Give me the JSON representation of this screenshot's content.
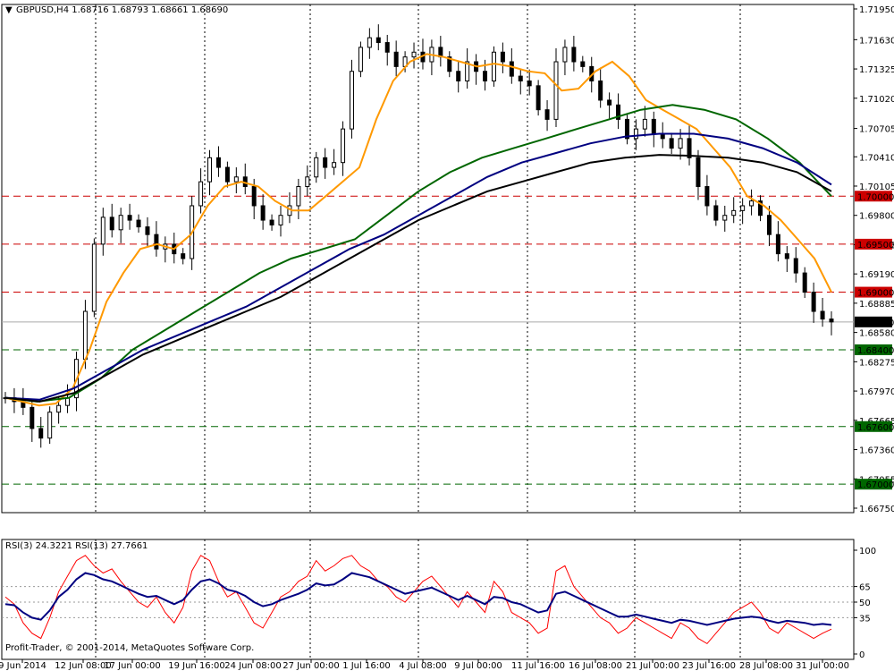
{
  "header": {
    "symbol": "GBPUSD,H4",
    "ohlc": "1.68716 1.68793 1.68661 1.68690"
  },
  "rsi_header": {
    "rsi3": "RSI(3) 24.3221",
    "rsi13": "RSI(13) 27.7661"
  },
  "copyright": "Profit-Trader, © 2001-2014, MetaQuotes Software Corp.",
  "colors": {
    "background": "#ffffff",
    "candle": "#000000",
    "ma_fast": "#ff9900",
    "ma_mid": "#006600",
    "ma_slow_blue": "#000080",
    "ma_slow_black": "#000000",
    "resistance": "#cc0000",
    "support": "#006600",
    "rsi_fast": "#ff0000",
    "rsi_slow": "#000080"
  },
  "chart_data": [
    {
      "type": "candlestick",
      "title": "GBPUSD,H4",
      "ylim": [
        1.6675,
        1.7195
      ],
      "y_ticks": [
        "1.71950",
        "1.71630",
        "1.71325",
        "1.71020",
        "1.70705",
        "1.70410",
        "1.70105",
        "1.69800",
        "1.69495",
        "1.69190",
        "1.68885",
        "1.68580",
        "1.68275",
        "1.67970",
        "1.67665",
        "1.67360",
        "1.67055",
        "1.66750"
      ],
      "x_ticks": [
        "9 Jun 2014",
        "12 Jun 08:00",
        "17 Jun 00:00",
        "19 Jun 16:00",
        "24 Jun 08:00",
        "27 Jun 00:00",
        "1 Jul 16:00",
        "4 Jul 08:00",
        "9 Jul 00:00",
        "11 Jul 16:00",
        "16 Jul 08:00",
        "21 Jul 00:00",
        "23 Jul 16:00",
        "28 Jul 08:00",
        "31 Jul 00:00"
      ],
      "close_series": [
        1.679,
        1.6786,
        1.678,
        1.6758,
        1.6748,
        1.6775,
        1.6782,
        1.679,
        1.683,
        1.688,
        1.695,
        1.6978,
        1.6965,
        1.698,
        1.6975,
        1.6968,
        1.696,
        1.6945,
        1.695,
        1.694,
        1.6935,
        1.699,
        1.7015,
        1.704,
        1.703,
        1.7015,
        1.702,
        1.701,
        1.699,
        1.6975,
        1.697,
        1.698,
        1.699,
        1.701,
        1.702,
        1.704,
        1.703,
        1.7035,
        1.707,
        1.713,
        1.7155,
        1.7165,
        1.716,
        1.715,
        1.7135,
        1.7145,
        1.715,
        1.714,
        1.7155,
        1.7145,
        1.713,
        1.712,
        1.714,
        1.713,
        1.712,
        1.715,
        1.714,
        1.7125,
        1.712,
        1.7115,
        1.709,
        1.708,
        1.714,
        1.7155,
        1.714,
        1.7135,
        1.712,
        1.71,
        1.7095,
        1.708,
        1.706,
        1.707,
        1.708,
        1.7065,
        1.706,
        1.705,
        1.706,
        1.704,
        1.701,
        1.699,
        1.6975,
        1.698,
        1.6985,
        1.699,
        1.6995,
        1.698,
        1.696,
        1.694,
        1.6935,
        1.692,
        1.69,
        1.688,
        1.6872,
        1.6869
      ],
      "moving_averages": [
        {
          "color": "orange",
          "values": [
            1.679,
            1.6786,
            1.6782,
            1.6784,
            1.68,
            1.684,
            1.689,
            1.692,
            1.6945,
            1.695,
            1.6945,
            1.696,
            1.699,
            1.701,
            1.7015,
            1.701,
            1.6995,
            1.6985,
            1.6985,
            1.7,
            1.7015,
            1.703,
            1.708,
            1.712,
            1.714,
            1.7148,
            1.7145,
            1.714,
            1.7135,
            1.7138,
            1.7135,
            1.713,
            1.7128,
            1.711,
            1.7112,
            1.713,
            1.714,
            1.7125,
            1.71,
            1.709,
            1.708,
            1.707,
            1.705,
            1.703,
            1.7,
            1.699,
            1.6975,
            1.6955,
            1.6935,
            1.69
          ]
        },
        {
          "color": "green",
          "values": [
            1.679,
            1.6786,
            1.679,
            1.681,
            1.684,
            1.686,
            1.688,
            1.69,
            1.692,
            1.6935,
            1.6945,
            1.6955,
            1.698,
            1.7005,
            1.7025,
            1.704,
            1.705,
            1.706,
            1.707,
            1.708,
            1.709,
            1.7095,
            1.709,
            1.708,
            1.706,
            1.7035,
            1.7
          ]
        },
        {
          "color": "blue",
          "values": [
            1.679,
            1.6788,
            1.68,
            1.682,
            1.684,
            1.6855,
            1.687,
            1.6885,
            1.6905,
            1.6925,
            1.6945,
            1.696,
            1.698,
            1.7,
            1.702,
            1.7035,
            1.7045,
            1.7055,
            1.7062,
            1.7065,
            1.7065,
            1.706,
            1.705,
            1.7035,
            1.7012
          ]
        },
        {
          "color": "black",
          "values": [
            1.679,
            1.6786,
            1.6795,
            1.6815,
            1.6835,
            1.685,
            1.6865,
            1.688,
            1.6895,
            1.6915,
            1.6935,
            1.6955,
            1.6975,
            1.699,
            1.7005,
            1.7015,
            1.7025,
            1.7035,
            1.704,
            1.7043,
            1.7042,
            1.704,
            1.7035,
            1.7025,
            1.7005
          ]
        }
      ],
      "levels": [
        {
          "label": "1.70000",
          "value": 1.7,
          "kind": "resistance"
        },
        {
          "label": "1.69500",
          "value": 1.695,
          "kind": "resistance"
        },
        {
          "label": "1.69000",
          "value": 1.69,
          "kind": "resistance"
        },
        {
          "label": "1.68400",
          "value": 1.684,
          "kind": "support"
        },
        {
          "label": "1.67600",
          "value": 1.676,
          "kind": "support"
        },
        {
          "label": "1.67000",
          "value": 1.67,
          "kind": "support"
        }
      ],
      "current_price": {
        "label": "1.68690",
        "value": 1.6869
      }
    },
    {
      "type": "line",
      "title": "RSI",
      "ylim": [
        0,
        100
      ],
      "y_ticks": [
        "100",
        "65",
        "50",
        "35",
        "0"
      ],
      "levels": [
        65,
        50,
        35
      ],
      "series": [
        {
          "name": "RSI(3)",
          "values": [
            55,
            48,
            30,
            20,
            15,
            35,
            60,
            75,
            90,
            95,
            85,
            78,
            82,
            70,
            60,
            50,
            45,
            55,
            40,
            30,
            45,
            80,
            95,
            90,
            70,
            55,
            60,
            45,
            30,
            25,
            40,
            55,
            60,
            70,
            75,
            90,
            80,
            85,
            92,
            95,
            85,
            80,
            70,
            65,
            55,
            50,
            60,
            70,
            75,
            65,
            55,
            45,
            60,
            50,
            40,
            70,
            60,
            40,
            35,
            30,
            20,
            25,
            80,
            85,
            65,
            55,
            45,
            35,
            30,
            20,
            25,
            35,
            30,
            25,
            20,
            15,
            30,
            25,
            15,
            10,
            20,
            30,
            40,
            45,
            50,
            40,
            25,
            20,
            30,
            25,
            20,
            15,
            20,
            24
          ]
        },
        {
          "name": "RSI(13)",
          "values": [
            48,
            47,
            40,
            35,
            33,
            42,
            55,
            62,
            72,
            78,
            76,
            72,
            70,
            66,
            62,
            58,
            55,
            56,
            52,
            48,
            52,
            62,
            70,
            72,
            68,
            62,
            60,
            56,
            50,
            46,
            48,
            52,
            55,
            58,
            62,
            68,
            66,
            67,
            72,
            78,
            76,
            74,
            70,
            66,
            62,
            58,
            60,
            62,
            64,
            60,
            56,
            52,
            56,
            52,
            48,
            55,
            54,
            50,
            48,
            44,
            40,
            42,
            58,
            60,
            56,
            52,
            48,
            44,
            40,
            36,
            36,
            38,
            36,
            34,
            32,
            30,
            33,
            32,
            30,
            28,
            30,
            32,
            34,
            35,
            36,
            35,
            32,
            30,
            32,
            31,
            30,
            28,
            29,
            28
          ]
        }
      ]
    }
  ]
}
